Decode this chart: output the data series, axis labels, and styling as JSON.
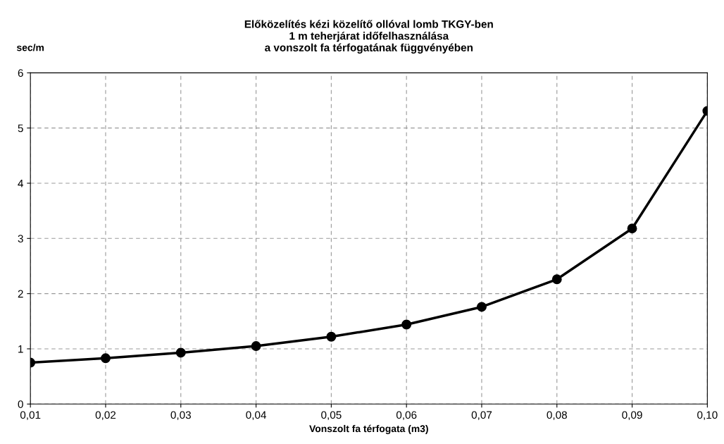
{
  "chart_data": {
    "type": "line",
    "title": "Előközelítés kézi közelítő ollóval lomb TKGY-ben\n1 m teherjárat időfelhasználása\na vonszolt fa térfogatának függvényében",
    "xlabel": "Vonszolt fa térfogata (m3)",
    "ylabel": "sec/m",
    "x": [
      0.01,
      0.02,
      0.03,
      0.04,
      0.05,
      0.06,
      0.07,
      0.08,
      0.09,
      0.1
    ],
    "series": [
      {
        "color": "#000000",
        "values": [
          0.75,
          0.83,
          0.93,
          1.05,
          1.22,
          1.44,
          1.76,
          2.26,
          3.18,
          5.31
        ]
      }
    ],
    "xlim": [
      0.01,
      0.1
    ],
    "xticks": [
      {
        "value": 0.01,
        "label": "0,01"
      },
      {
        "value": 0.02,
        "label": "0,02"
      },
      {
        "value": 0.03,
        "label": "0,03"
      },
      {
        "value": 0.04,
        "label": "0,04"
      },
      {
        "value": 0.05,
        "label": "0,05"
      },
      {
        "value": 0.06,
        "label": "0,06"
      },
      {
        "value": 0.07,
        "label": "0,07"
      },
      {
        "value": 0.08,
        "label": "0,08"
      },
      {
        "value": 0.09,
        "label": "0,09"
      },
      {
        "value": 0.1,
        "label": "0,10"
      }
    ],
    "ylim": [
      0,
      6
    ],
    "yticks": [
      0,
      1,
      2,
      3,
      4,
      5,
      6
    ],
    "grid": true,
    "marker": "circle",
    "line_style": "solid"
  }
}
